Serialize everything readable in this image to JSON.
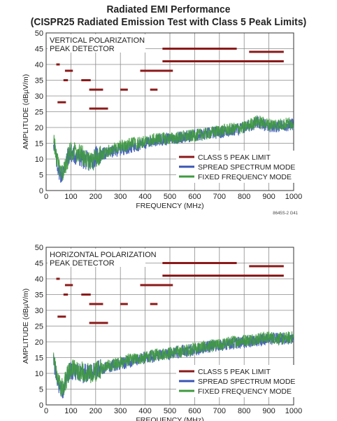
{
  "title": {
    "line1": "Radiated EMI Performance",
    "line2": "(CISPR25 Radiated Emission Test with Class 5 Peak Limits)"
  },
  "figure_code": "8645S-2 G41",
  "colors": {
    "limit": "#8b1a1a",
    "spread": "#3a55b4",
    "fixed": "#3f9a3f",
    "grid": "#8a8a8a"
  },
  "chart_data": [
    {
      "type": "line",
      "notes": [
        "VERTICAL POLARIZATION",
        "PEAK DETECTOR"
      ],
      "xlabel": "FREQUENCY (MHz)",
      "ylabel": "AMPLITUDE (dBµV/m)",
      "xlim": [
        0,
        1000
      ],
      "ylim": [
        0,
        50
      ],
      "xticks": [
        0,
        100,
        200,
        300,
        400,
        500,
        600,
        700,
        800,
        900,
        1000
      ],
      "yticks": [
        0,
        5,
        10,
        15,
        20,
        25,
        30,
        35,
        40,
        45,
        50
      ],
      "grid": true,
      "legend": "bottom-right",
      "limits_name": "CLASS 5 PEAK LIMIT",
      "limits": [
        {
          "x": [
            41,
            55
          ],
          "y": 40
        },
        {
          "x": [
            46,
            80
          ],
          "y": 28
        },
        {
          "x": [
            70,
            88
          ],
          "y": 35
        },
        {
          "x": [
            76,
            108
          ],
          "y": 38
        },
        {
          "x": [
            142,
            180
          ],
          "y": 35
        },
        {
          "x": [
            174,
            230
          ],
          "y": 32
        },
        {
          "x": [
            174,
            250
          ],
          "y": 26
        },
        {
          "x": [
            300,
            330
          ],
          "y": 32
        },
        {
          "x": [
            380,
            512
          ],
          "y": 38
        },
        {
          "x": [
            420,
            450
          ],
          "y": 32
        },
        {
          "x": [
            470,
            770
          ],
          "y": 45
        },
        {
          "x": [
            470,
            960
          ],
          "y": 41
        },
        {
          "x": [
            820,
            960
          ],
          "y": 44
        }
      ],
      "series": [
        {
          "name": "SPREAD SPECTRUM MODE",
          "x": [
            30,
            40,
            50,
            60,
            70,
            80,
            90,
            100,
            120,
            150,
            180,
            200,
            250,
            300,
            350,
            400,
            450,
            500,
            550,
            600,
            650,
            700,
            750,
            800,
            850,
            900,
            950,
            1000
          ],
          "y": [
            16,
            10,
            7,
            5,
            6,
            9,
            11,
            12,
            11,
            10,
            9,
            11,
            12,
            13,
            14,
            15,
            16,
            16.5,
            17,
            17.5,
            18,
            18.5,
            19,
            20,
            21.5,
            20.5,
            20.5,
            21
          ]
        },
        {
          "name": "FIXED FREQUENCY MODE",
          "x": [
            30,
            40,
            50,
            60,
            70,
            80,
            90,
            100,
            120,
            150,
            180,
            200,
            250,
            300,
            350,
            400,
            450,
            500,
            550,
            600,
            650,
            700,
            750,
            800,
            850,
            900,
            950,
            1000
          ],
          "y": [
            17,
            11,
            8,
            5,
            6,
            8,
            11,
            13,
            12,
            11,
            9,
            10,
            12.5,
            14,
            15,
            15.5,
            16.5,
            16.5,
            17,
            17.5,
            18,
            19,
            19.5,
            20,
            22,
            21,
            21,
            21.5
          ]
        }
      ]
    },
    {
      "type": "line",
      "notes": [
        "HORIZONTAL POLARIZATION",
        "PEAK DETECTOR"
      ],
      "xlabel": "FREQUENCY (MHz)",
      "ylabel": "AMPLITUDE (dBµV/m)",
      "xlim": [
        0,
        1000
      ],
      "ylim": [
        0,
        50
      ],
      "xticks": [
        0,
        100,
        200,
        300,
        400,
        500,
        600,
        700,
        800,
        900,
        1000
      ],
      "yticks": [
        0,
        5,
        10,
        15,
        20,
        25,
        30,
        35,
        40,
        45,
        50
      ],
      "grid": true,
      "legend": "bottom-right",
      "limits_name": "CLASS 5 PEAK LIMIT",
      "limits": [
        {
          "x": [
            41,
            55
          ],
          "y": 40
        },
        {
          "x": [
            46,
            80
          ],
          "y": 28
        },
        {
          "x": [
            70,
            88
          ],
          "y": 35
        },
        {
          "x": [
            76,
            108
          ],
          "y": 38
        },
        {
          "x": [
            142,
            180
          ],
          "y": 35
        },
        {
          "x": [
            174,
            230
          ],
          "y": 32
        },
        {
          "x": [
            174,
            250
          ],
          "y": 26
        },
        {
          "x": [
            300,
            330
          ],
          "y": 32
        },
        {
          "x": [
            380,
            512
          ],
          "y": 38
        },
        {
          "x": [
            420,
            450
          ],
          "y": 32
        },
        {
          "x": [
            470,
            770
          ],
          "y": 45
        },
        {
          "x": [
            470,
            960
          ],
          "y": 41
        },
        {
          "x": [
            820,
            960
          ],
          "y": 44
        }
      ],
      "series": [
        {
          "name": "SPREAD SPECTRUM MODE",
          "x": [
            30,
            40,
            50,
            60,
            70,
            80,
            90,
            100,
            120,
            150,
            180,
            200,
            250,
            300,
            350,
            400,
            450,
            500,
            550,
            600,
            650,
            700,
            750,
            800,
            850,
            900,
            950,
            1000
          ],
          "y": [
            15,
            10,
            6,
            4.5,
            5,
            8,
            10,
            11,
            10.5,
            10,
            10,
            11,
            12,
            13,
            14,
            15,
            15.5,
            16,
            17,
            17.5,
            18.5,
            19,
            19.5,
            20,
            20.5,
            21,
            21,
            21
          ]
        },
        {
          "name": "FIXED FREQUENCY MODE",
          "x": [
            30,
            40,
            50,
            60,
            70,
            80,
            90,
            100,
            120,
            150,
            180,
            200,
            250,
            300,
            350,
            400,
            450,
            500,
            550,
            600,
            650,
            700,
            750,
            800,
            850,
            900,
            950,
            1000
          ],
          "y": [
            16,
            11,
            7,
            5,
            6,
            8,
            10,
            11.5,
            11,
            10.5,
            10,
            10.5,
            12.5,
            13.5,
            14.5,
            15,
            16,
            16.5,
            17,
            18,
            18.5,
            19,
            20,
            20.5,
            21,
            21.5,
            21,
            21.5
          ]
        }
      ]
    }
  ]
}
